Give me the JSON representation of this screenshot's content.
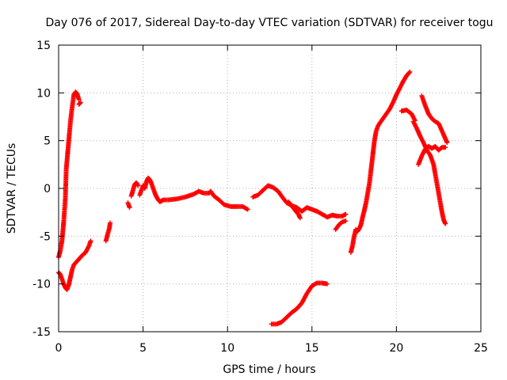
{
  "chart_data": {
    "type": "scatter",
    "title": "Day 076 of 2017, Sidereal Day-to-day VTEC variation (SDTVAR) for receiver togu",
    "xlabel": "GPS time / hours",
    "ylabel": "SDTVAR / TECUs",
    "xlim": [
      0,
      25
    ],
    "ylim": [
      -15,
      15
    ],
    "xticks": [
      0,
      5,
      10,
      15,
      20,
      25
    ],
    "yticks": [
      -15,
      -10,
      -5,
      0,
      5,
      10,
      15
    ],
    "grid": true,
    "marker": "+",
    "series_color": "#ff0000",
    "segments": [
      [
        [
          0.0,
          -7.2
        ],
        [
          0.1,
          -6.5
        ],
        [
          0.2,
          -5.5
        ],
        [
          0.3,
          -3.5
        ],
        [
          0.4,
          -1.0
        ],
        [
          0.45,
          2.0
        ],
        [
          0.5,
          3.0
        ],
        [
          0.6,
          5.0
        ],
        [
          0.7,
          7.0
        ],
        [
          0.8,
          8.5
        ],
        [
          0.9,
          9.8
        ],
        [
          1.0,
          10.1
        ],
        [
          1.1,
          9.9
        ],
        [
          1.2,
          9.3
        ]
      ],
      [
        [
          1.2,
          8.8
        ],
        [
          1.3,
          9.0
        ]
      ],
      [
        [
          0.0,
          -8.8
        ],
        [
          0.1,
          -9.0
        ],
        [
          0.2,
          -9.5
        ],
        [
          0.3,
          -10.0
        ],
        [
          0.4,
          -10.4
        ],
        [
          0.5,
          -10.6
        ],
        [
          0.6,
          -10.1
        ],
        [
          0.7,
          -9.3
        ],
        [
          0.8,
          -8.5
        ],
        [
          0.9,
          -8.0
        ],
        [
          1.0,
          -7.8
        ],
        [
          1.2,
          -7.4
        ],
        [
          1.4,
          -7.0
        ],
        [
          1.6,
          -6.7
        ],
        [
          1.8,
          -6.0
        ],
        [
          1.9,
          -5.5
        ]
      ],
      [
        [
          2.8,
          -5.5
        ],
        [
          2.9,
          -4.8
        ],
        [
          3.0,
          -4.2
        ],
        [
          3.05,
          -3.6
        ]
      ],
      [
        [
          4.1,
          -1.5
        ],
        [
          4.2,
          -2.0
        ]
      ],
      [
        [
          4.3,
          -0.8
        ],
        [
          4.4,
          -0.2
        ],
        [
          4.5,
          0.4
        ],
        [
          4.6,
          0.6
        ],
        [
          4.7,
          0.3
        ]
      ],
      [
        [
          4.8,
          -0.7
        ],
        [
          4.9,
          -0.2
        ],
        [
          5.0,
          0.3
        ],
        [
          5.1,
          0.0
        ],
        [
          5.2,
          0.7
        ],
        [
          5.3,
          1.1
        ],
        [
          5.4,
          0.9
        ],
        [
          5.5,
          0.5
        ],
        [
          5.6,
          0.0
        ],
        [
          5.7,
          -0.5
        ],
        [
          5.8,
          -0.9
        ],
        [
          5.9,
          -1.2
        ],
        [
          6.0,
          -1.4
        ],
        [
          6.2,
          -1.2
        ],
        [
          6.5,
          -1.2
        ],
        [
          7.0,
          -1.1
        ],
        [
          7.5,
          -0.9
        ],
        [
          8.0,
          -0.6
        ],
        [
          8.3,
          -0.3
        ],
        [
          8.6,
          -0.5
        ],
        [
          8.9,
          -0.5
        ],
        [
          9.0,
          -0.3
        ],
        [
          9.2,
          -0.8
        ],
        [
          9.5,
          -1.2
        ],
        [
          9.8,
          -1.7
        ],
        [
          10.2,
          -1.9
        ],
        [
          10.6,
          -1.9
        ],
        [
          10.9,
          -1.9
        ],
        [
          11.2,
          -2.2
        ]
      ],
      [
        [
          11.5,
          -0.9
        ],
        [
          11.8,
          -0.7
        ],
        [
          12.1,
          -0.2
        ],
        [
          12.4,
          0.3
        ],
        [
          12.7,
          0.1
        ],
        [
          13.0,
          -0.3
        ],
        [
          13.2,
          -0.8
        ],
        [
          13.5,
          -1.5
        ],
        [
          13.8,
          -1.8
        ],
        [
          14.1,
          -2.0
        ],
        [
          14.4,
          -2.4
        ],
        [
          14.7,
          -2.0
        ],
        [
          15.0,
          -2.2
        ],
        [
          15.3,
          -2.4
        ],
        [
          15.6,
          -2.7
        ],
        [
          15.9,
          -3.0
        ],
        [
          16.2,
          -2.8
        ],
        [
          16.5,
          -2.9
        ],
        [
          16.8,
          -2.9
        ],
        [
          17.0,
          -2.7
        ]
      ],
      [
        [
          13.6,
          -1.4
        ],
        [
          13.8,
          -1.8
        ],
        [
          14.0,
          -2.3
        ],
        [
          14.2,
          -2.7
        ],
        [
          14.3,
          -3.1
        ]
      ],
      [
        [
          12.6,
          -14.2
        ],
        [
          12.9,
          -14.2
        ],
        [
          13.2,
          -14.0
        ],
        [
          13.5,
          -13.5
        ],
        [
          13.8,
          -13.0
        ],
        [
          14.1,
          -12.6
        ],
        [
          14.4,
          -12.0
        ],
        [
          14.7,
          -11.0
        ],
        [
          15.0,
          -10.2
        ],
        [
          15.3,
          -9.9
        ],
        [
          15.6,
          -9.9
        ],
        [
          15.9,
          -10.0
        ]
      ],
      [
        [
          16.4,
          -4.3
        ],
        [
          16.6,
          -3.8
        ],
        [
          16.8,
          -3.5
        ],
        [
          17.0,
          -3.4
        ]
      ],
      [
        [
          17.3,
          -6.7
        ],
        [
          17.4,
          -6.0
        ],
        [
          17.5,
          -5.0
        ],
        [
          17.6,
          -4.3
        ],
        [
          17.7,
          -4.5
        ],
        [
          17.8,
          -4.2
        ],
        [
          17.9,
          -3.8
        ],
        [
          18.0,
          -3.0
        ],
        [
          18.1,
          -2.3
        ],
        [
          18.2,
          -1.5
        ],
        [
          18.3,
          -0.5
        ],
        [
          18.4,
          0.5
        ],
        [
          18.5,
          2.0
        ],
        [
          18.6,
          3.5
        ],
        [
          18.7,
          5.0
        ],
        [
          18.8,
          6.0
        ],
        [
          18.9,
          6.5
        ],
        [
          19.0,
          6.8
        ],
        [
          19.2,
          7.3
        ],
        [
          19.4,
          7.8
        ],
        [
          19.6,
          8.3
        ],
        [
          19.8,
          9.0
        ],
        [
          20.0,
          9.8
        ],
        [
          20.2,
          10.5
        ],
        [
          20.4,
          11.2
        ],
        [
          20.6,
          11.8
        ],
        [
          20.8,
          12.2
        ]
      ],
      [
        [
          20.3,
          8.1
        ],
        [
          20.6,
          8.2
        ],
        [
          20.9,
          7.8
        ],
        [
          21.1,
          7.1
        ]
      ],
      [
        [
          21.0,
          7.0
        ],
        [
          21.2,
          6.3
        ],
        [
          21.4,
          5.5
        ],
        [
          21.6,
          4.8
        ],
        [
          21.8,
          4.0
        ],
        [
          22.0,
          3.5
        ],
        [
          22.2,
          2.5
        ],
        [
          22.4,
          0.5
        ],
        [
          22.5,
          -0.5
        ],
        [
          22.6,
          -1.5
        ],
        [
          22.7,
          -2.5
        ],
        [
          22.8,
          -3.3
        ],
        [
          22.9,
          -3.7
        ]
      ],
      [
        [
          21.5,
          9.7
        ],
        [
          21.7,
          8.7
        ],
        [
          21.9,
          7.8
        ],
        [
          22.1,
          7.3
        ],
        [
          22.3,
          7.0
        ],
        [
          22.5,
          6.8
        ],
        [
          22.7,
          6.0
        ],
        [
          22.9,
          5.2
        ],
        [
          23.0,
          4.8
        ]
      ],
      [
        [
          21.3,
          2.5
        ],
        [
          21.5,
          3.4
        ],
        [
          21.7,
          4.1
        ],
        [
          21.9,
          4.4
        ],
        [
          22.1,
          4.2
        ],
        [
          22.3,
          4.4
        ],
        [
          22.5,
          4.0
        ],
        [
          22.7,
          4.3
        ],
        [
          22.9,
          4.3
        ]
      ]
    ]
  }
}
